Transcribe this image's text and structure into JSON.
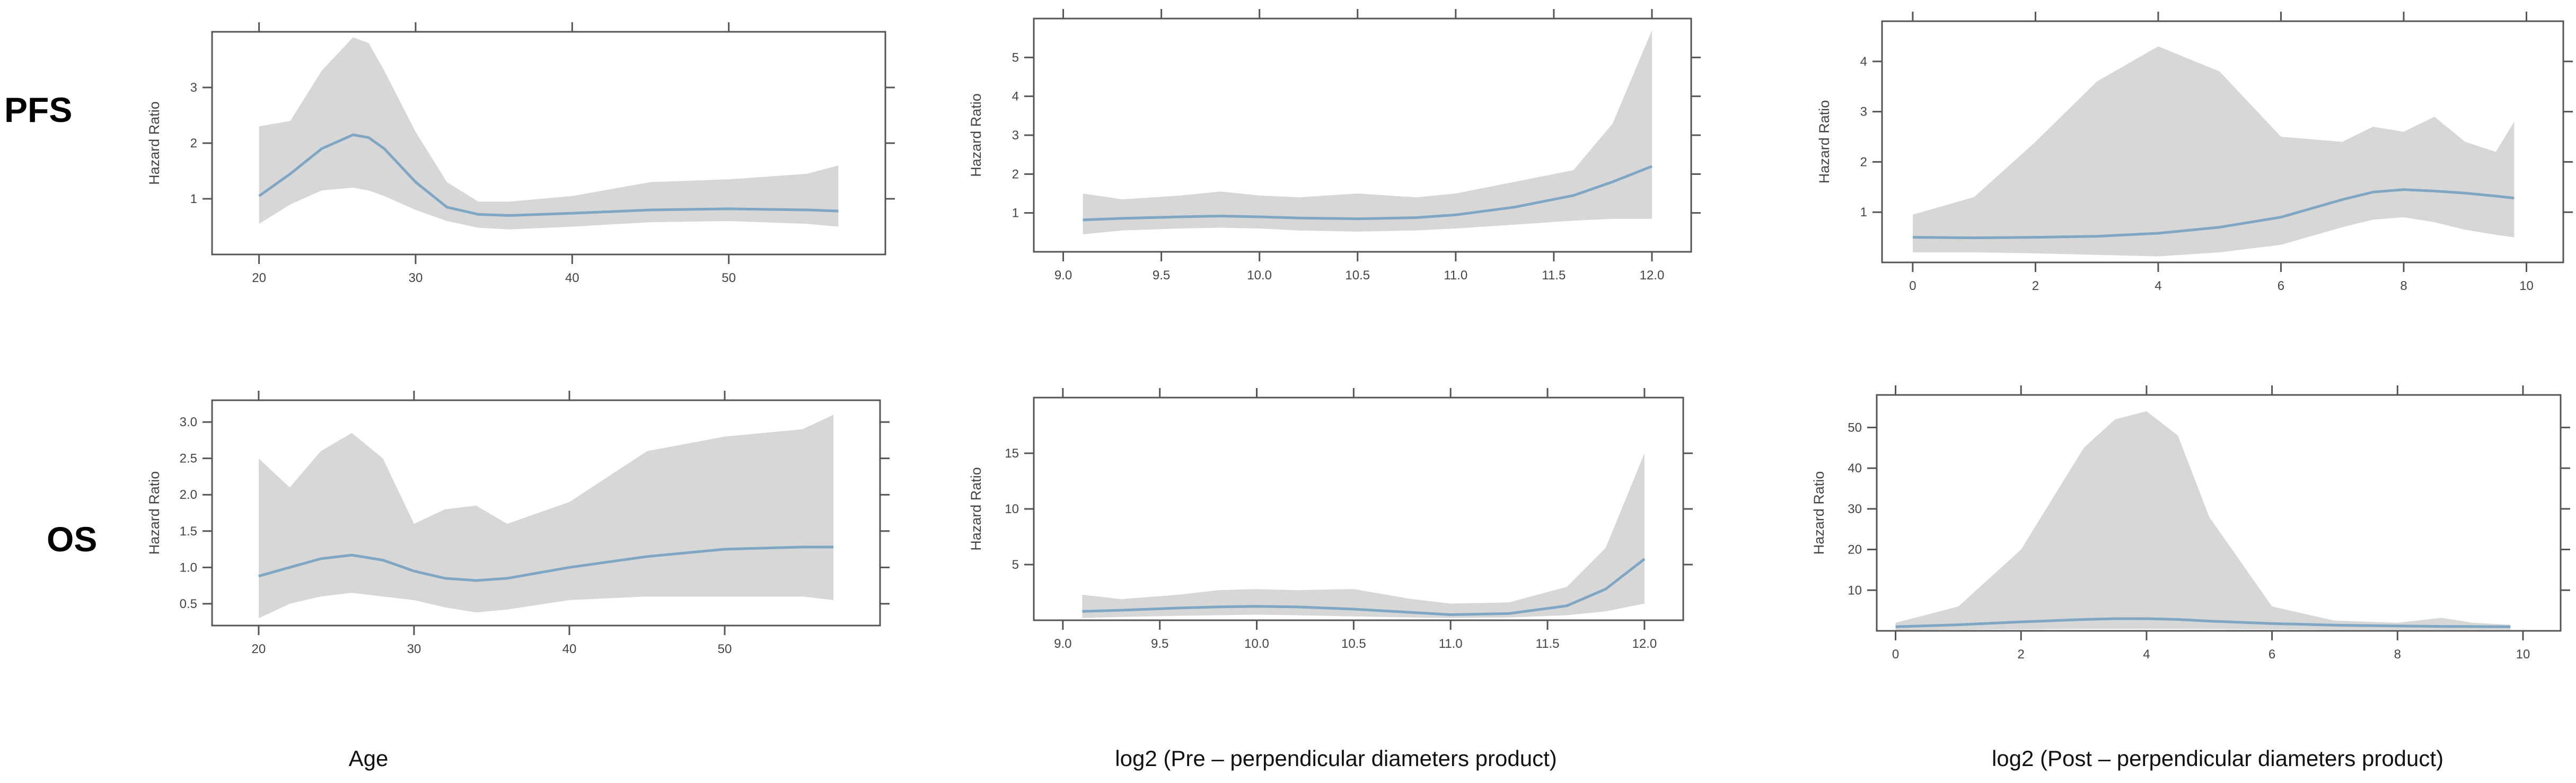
{
  "row_labels": [
    "PFS",
    "OS"
  ],
  "column_labels": [
    "Age",
    "log2 (Pre – perpendicular diameters product)",
    "log2 (Post – perpendicular diameters product)"
  ],
  "colors": {
    "band": "#d7d7d7",
    "curve": "#7fa7c4",
    "axis": "#555555"
  },
  "chart_data": [
    {
      "type": "area",
      "row": "PFS",
      "column": "Age",
      "ylabel": "Hazard Ratio",
      "xlim": [
        17,
        60
      ],
      "ylim": [
        0,
        4.0
      ],
      "xticks": [
        20,
        30,
        40,
        50
      ],
      "yticks": [
        1,
        2,
        3
      ],
      "series": [
        {
          "x": [
            20,
            22,
            24,
            26,
            27,
            28,
            30,
            32,
            34,
            36,
            40,
            45,
            50,
            55,
            57
          ],
          "y": [
            1.05,
            1.45,
            1.9,
            2.15,
            2.1,
            1.9,
            1.3,
            0.85,
            0.72,
            0.7,
            0.74,
            0.8,
            0.82,
            0.8,
            0.78
          ],
          "lower": [
            0.55,
            0.9,
            1.15,
            1.2,
            1.15,
            1.05,
            0.8,
            0.6,
            0.48,
            0.45,
            0.5,
            0.58,
            0.6,
            0.55,
            0.5
          ],
          "upper": [
            2.3,
            2.4,
            3.3,
            3.9,
            3.8,
            3.3,
            2.2,
            1.3,
            0.95,
            0.95,
            1.05,
            1.3,
            1.35,
            1.45,
            1.6
          ]
        }
      ]
    },
    {
      "type": "area",
      "row": "PFS",
      "column": "log2 (Pre – perpendicular diameters product)",
      "ylabel": "Hazard Ratio",
      "xlim": [
        8.85,
        12.2
      ],
      "ylim": [
        0,
        6.0
      ],
      "xticks": [
        9.0,
        9.5,
        10.0,
        10.5,
        11.0,
        11.5,
        12.0
      ],
      "yticks": [
        1,
        2,
        3,
        4,
        5
      ],
      "series": [
        {
          "x": [
            9.1,
            9.3,
            9.6,
            9.8,
            10.0,
            10.2,
            10.5,
            10.8,
            11.0,
            11.3,
            11.6,
            11.8,
            12.0
          ],
          "y": [
            0.82,
            0.86,
            0.9,
            0.92,
            0.9,
            0.87,
            0.85,
            0.88,
            0.95,
            1.15,
            1.45,
            1.8,
            2.2
          ],
          "lower": [
            0.45,
            0.55,
            0.6,
            0.62,
            0.6,
            0.55,
            0.52,
            0.55,
            0.6,
            0.7,
            0.8,
            0.85,
            0.85
          ],
          "upper": [
            1.5,
            1.35,
            1.45,
            1.55,
            1.45,
            1.4,
            1.5,
            1.4,
            1.5,
            1.8,
            2.1,
            3.3,
            5.7
          ]
        }
      ]
    },
    {
      "type": "area",
      "row": "PFS",
      "column": "log2 (Post – perpendicular diameters product)",
      "ylabel": "Hazard Ratio",
      "xlim": [
        -0.5,
        10.6
      ],
      "ylim": [
        0,
        4.8
      ],
      "xticks": [
        0,
        2,
        4,
        6,
        8,
        10
      ],
      "yticks": [
        1,
        2,
        3,
        4
      ],
      "series": [
        {
          "x": [
            0,
            1,
            2,
            3,
            4,
            5,
            6,
            7,
            7.5,
            8,
            8.5,
            9,
            9.5,
            9.8
          ],
          "y": [
            0.5,
            0.49,
            0.5,
            0.52,
            0.58,
            0.7,
            0.9,
            1.25,
            1.4,
            1.45,
            1.42,
            1.38,
            1.32,
            1.28
          ],
          "lower": [
            0.2,
            0.2,
            0.18,
            0.15,
            0.12,
            0.2,
            0.35,
            0.7,
            0.85,
            0.9,
            0.8,
            0.65,
            0.55,
            0.5
          ],
          "upper": [
            0.95,
            1.3,
            2.4,
            3.6,
            4.3,
            3.8,
            2.5,
            2.4,
            2.7,
            2.6,
            2.9,
            2.4,
            2.2,
            2.8
          ]
        }
      ]
    },
    {
      "type": "area",
      "row": "OS",
      "column": "Age",
      "ylabel": "Hazard Ratio",
      "xlim": [
        17,
        60
      ],
      "ylim": [
        0.2,
        3.3
      ],
      "xticks": [
        20,
        30,
        40,
        50
      ],
      "yticks": [
        0.5,
        1.0,
        1.5,
        2.0,
        2.5,
        3.0
      ],
      "series": [
        {
          "x": [
            20,
            22,
            24,
            26,
            28,
            30,
            32,
            34,
            36,
            40,
            45,
            50,
            55,
            57
          ],
          "y": [
            0.88,
            1.0,
            1.12,
            1.17,
            1.1,
            0.95,
            0.85,
            0.82,
            0.85,
            1.0,
            1.15,
            1.25,
            1.28,
            1.28
          ],
          "lower": [
            0.3,
            0.5,
            0.6,
            0.65,
            0.6,
            0.55,
            0.45,
            0.38,
            0.42,
            0.55,
            0.6,
            0.6,
            0.6,
            0.55
          ],
          "upper": [
            2.5,
            2.1,
            2.6,
            2.85,
            2.5,
            1.6,
            1.8,
            1.85,
            1.6,
            1.9,
            2.6,
            2.8,
            2.9,
            3.1
          ]
        }
      ]
    },
    {
      "type": "area",
      "row": "OS",
      "column": "log2 (Pre – perpendicular diameters product)",
      "ylabel": "Hazard Ratio",
      "xlim": [
        8.85,
        12.2
      ],
      "ylim": [
        0,
        20
      ],
      "xticks": [
        9.0,
        9.5,
        10.0,
        10.5,
        11.0,
        11.5,
        12.0
      ],
      "yticks": [
        5,
        10,
        15
      ],
      "series": [
        {
          "x": [
            9.1,
            9.3,
            9.6,
            9.8,
            10.0,
            10.2,
            10.5,
            10.8,
            11.0,
            11.3,
            11.6,
            11.8,
            12.0
          ],
          "y": [
            0.8,
            0.9,
            1.1,
            1.2,
            1.25,
            1.2,
            1.0,
            0.7,
            0.5,
            0.6,
            1.3,
            2.8,
            5.5
          ],
          "lower": [
            0.2,
            0.3,
            0.4,
            0.45,
            0.5,
            0.45,
            0.35,
            0.25,
            0.2,
            0.25,
            0.45,
            0.8,
            1.5
          ],
          "upper": [
            2.3,
            1.9,
            2.3,
            2.7,
            2.8,
            2.7,
            2.8,
            1.9,
            1.5,
            1.6,
            3.0,
            6.5,
            15
          ]
        }
      ]
    },
    {
      "type": "area",
      "row": "OS",
      "column": "log2 (Post – perpendicular diameters product)",
      "ylabel": "Hazard Ratio",
      "xlim": [
        -0.3,
        10.6
      ],
      "ylim": [
        0,
        58
      ],
      "xticks": [
        0,
        2,
        4,
        6,
        8,
        10
      ],
      "yticks": [
        10,
        20,
        30,
        40,
        50
      ],
      "series": [
        {
          "x": [
            0,
            1,
            2,
            3,
            3.5,
            4,
            4.5,
            5,
            6,
            7,
            8,
            8.7,
            9.2,
            9.8
          ],
          "y": [
            1.0,
            1.5,
            2.2,
            2.8,
            3.0,
            3.0,
            2.8,
            2.4,
            1.8,
            1.4,
            1.2,
            1.1,
            1.05,
            1.0
          ],
          "lower": [
            0.2,
            0.3,
            0.4,
            0.5,
            0.5,
            0.5,
            0.5,
            0.45,
            0.4,
            0.3,
            0.3,
            0.3,
            0.3,
            0.3
          ],
          "upper": [
            2,
            6,
            20,
            45,
            52,
            54,
            48,
            28,
            6,
            2.5,
            2,
            3.2,
            2,
            1.5
          ]
        }
      ]
    }
  ]
}
